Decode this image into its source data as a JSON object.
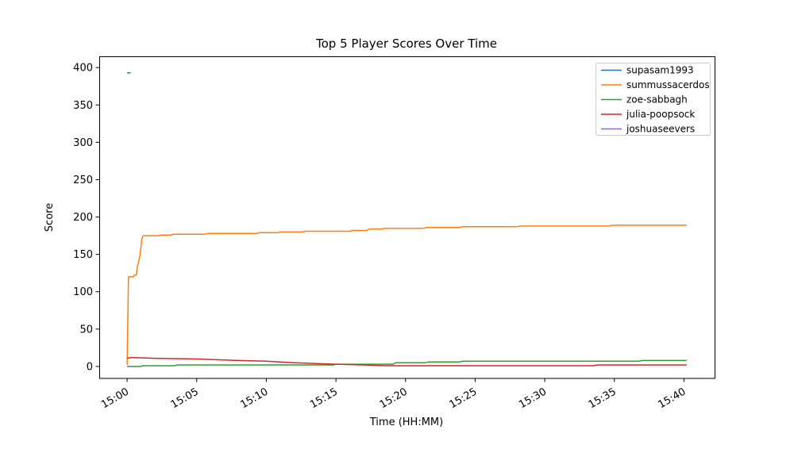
{
  "chart_data": {
    "type": "line",
    "title": "Top 5 Player Scores Over Time",
    "xlabel": "Time (HH:MM)",
    "ylabel": "Score",
    "x_unit": "minutes after 15:00",
    "x_tick_minutes": [
      0,
      5,
      10,
      15,
      20,
      25,
      30,
      35,
      40
    ],
    "x_tick_labels": [
      "15:00",
      "15:05",
      "15:10",
      "15:15",
      "15:20",
      "15:25",
      "15:30",
      "15:35",
      "15:40"
    ],
    "y_ticks": [
      0,
      50,
      100,
      150,
      200,
      250,
      300,
      350,
      400
    ],
    "xlim": [
      -2,
      42.2
    ],
    "ylim": [
      -16,
      414
    ],
    "grid": false,
    "legend_position": "upper right",
    "series": [
      {
        "name": "supasam1993",
        "color": "#1f77b4",
        "points": [
          [
            0,
            393
          ],
          [
            0.25,
            393
          ]
        ]
      },
      {
        "name": "summussacerdos",
        "color": "#ff7f0e",
        "points": [
          [
            0,
            2
          ],
          [
            0.1,
            120
          ],
          [
            0.45,
            120
          ],
          [
            0.5,
            122
          ],
          [
            0.65,
            122
          ],
          [
            0.75,
            135
          ],
          [
            0.9,
            146
          ],
          [
            1.0,
            160
          ],
          [
            1.05,
            170
          ],
          [
            1.15,
            175
          ],
          [
            2.3,
            175
          ],
          [
            2.4,
            176
          ],
          [
            3.2,
            176
          ],
          [
            3.3,
            177
          ],
          [
            5.6,
            177
          ],
          [
            5.8,
            178
          ],
          [
            9.3,
            178
          ],
          [
            9.5,
            179
          ],
          [
            10.8,
            179
          ],
          [
            11.0,
            180
          ],
          [
            12.6,
            180
          ],
          [
            12.8,
            181
          ],
          [
            16.0,
            181
          ],
          [
            16.2,
            182
          ],
          [
            17.2,
            182
          ],
          [
            17.4,
            184
          ],
          [
            18.3,
            184
          ],
          [
            18.5,
            185
          ],
          [
            21.3,
            185
          ],
          [
            21.5,
            186
          ],
          [
            23.9,
            186
          ],
          [
            24.1,
            187
          ],
          [
            28.0,
            187
          ],
          [
            28.3,
            188
          ],
          [
            34.6,
            188
          ],
          [
            34.9,
            189
          ],
          [
            40.2,
            189
          ]
        ]
      },
      {
        "name": "zoe-sabbagh",
        "color": "#2ca02c",
        "points": [
          [
            0,
            0
          ],
          [
            1.0,
            0
          ],
          [
            1.1,
            1
          ],
          [
            3.4,
            1
          ],
          [
            3.6,
            2
          ],
          [
            14.8,
            2
          ],
          [
            15.0,
            3
          ],
          [
            19.1,
            3
          ],
          [
            19.3,
            5
          ],
          [
            21.4,
            5
          ],
          [
            21.6,
            6
          ],
          [
            23.9,
            6
          ],
          [
            24.1,
            7
          ],
          [
            36.8,
            7
          ],
          [
            37.0,
            8
          ],
          [
            40.2,
            8
          ]
        ]
      },
      {
        "name": "julia-poopsock",
        "color": "#d62728",
        "points": [
          [
            0,
            11
          ],
          [
            0.3,
            12
          ],
          [
            2.0,
            11
          ],
          [
            5.0,
            10
          ],
          [
            8.0,
            8
          ],
          [
            10.0,
            7
          ],
          [
            12.0,
            5
          ],
          [
            15.0,
            3
          ],
          [
            17.0,
            2
          ],
          [
            18.5,
            1
          ],
          [
            33.5,
            1
          ],
          [
            33.8,
            2
          ],
          [
            40.2,
            2
          ]
        ]
      },
      {
        "name": "joshuaseevers",
        "color": "#9467bd",
        "points": [
          [
            0,
            0
          ],
          [
            0.2,
            0
          ]
        ]
      }
    ]
  }
}
